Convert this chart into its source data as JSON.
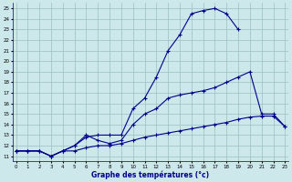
{
  "xlabel": "Graphe des températures (°c)",
  "bg_color": "#cce8ea",
  "grid_color": "#9bbfc2",
  "line_color": "#00008b",
  "xticks": [
    0,
    1,
    2,
    3,
    4,
    5,
    6,
    7,
    8,
    9,
    10,
    11,
    12,
    13,
    14,
    15,
    16,
    17,
    18,
    19,
    20,
    21,
    22,
    23
  ],
  "yticks": [
    11,
    12,
    13,
    14,
    15,
    16,
    17,
    18,
    19,
    20,
    21,
    22,
    23,
    24,
    25
  ],
  "curve_top": [
    11.5,
    11.5,
    11.5,
    11.0,
    11.5,
    12.0,
    12.8,
    13.0,
    13.0,
    13.0,
    15.5,
    16.5,
    18.5,
    21.0,
    22.5,
    24.5,
    24.8,
    25.0,
    24.5,
    23.0
  ],
  "curve_top_x": [
    0,
    1,
    2,
    3,
    4,
    5,
    6,
    7,
    8,
    9,
    10,
    11,
    12,
    13,
    14,
    15,
    16,
    17,
    18,
    19
  ],
  "curve_mid": [
    11.5,
    11.5,
    11.5,
    11.0,
    11.5,
    12.0,
    13.0,
    12.5,
    12.2,
    12.5,
    14.0,
    15.0,
    15.5,
    16.5,
    16.8,
    17.0,
    17.2,
    17.5,
    18.0,
    18.5,
    19.0,
    15.0,
    15.0,
    13.8
  ],
  "curve_mid_x": [
    0,
    1,
    2,
    3,
    4,
    5,
    6,
    7,
    8,
    9,
    10,
    11,
    12,
    13,
    14,
    15,
    16,
    17,
    18,
    19,
    20,
    21,
    22,
    23
  ],
  "curve_bot": [
    11.5,
    11.5,
    11.5,
    11.0,
    11.5,
    11.5,
    11.8,
    12.0,
    12.0,
    12.2,
    12.5,
    12.8,
    13.0,
    13.2,
    13.4,
    13.6,
    13.8,
    14.0,
    14.2,
    14.5,
    14.7,
    14.8,
    14.8,
    13.8
  ],
  "curve_bot_x": [
    0,
    1,
    2,
    3,
    4,
    5,
    6,
    7,
    8,
    9,
    10,
    11,
    12,
    13,
    14,
    15,
    16,
    17,
    18,
    19,
    20,
    21,
    22,
    23
  ]
}
